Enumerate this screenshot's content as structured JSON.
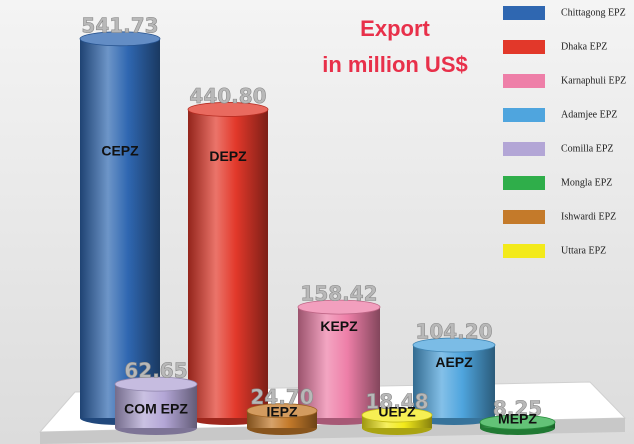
{
  "chart_data": {
    "type": "bar",
    "title": "Export",
    "subtitle": "in million US$",
    "categories": [
      "CEPZ",
      "DEPZ",
      "KEPZ",
      "AEPZ",
      "COM EPZ",
      "MEPZ",
      "IEPZ",
      "UEPZ"
    ],
    "values": [
      541.73,
      440.8,
      158.42,
      104.2,
      62.65,
      8.25,
      24.7,
      18.48
    ],
    "value_labels": [
      "541.73",
      "440.80",
      "158.42",
      "104.20",
      "62.65",
      "8.25",
      "24.70",
      "18.48"
    ],
    "legend": [
      "Chittagong EPZ",
      "Dhaka EPZ",
      "Karnaphuli EPZ",
      "Adamjee EPZ",
      "Comilla EPZ",
      "Mongla EPZ",
      "Ishwardi EPZ",
      "Uttara EPZ"
    ],
    "colors": [
      "#2f67b1",
      "#e2382a",
      "#ee7fa8",
      "#4fa5de",
      "#b3a6d6",
      "#2fae4a",
      "#c47a2a",
      "#f3ea1a"
    ]
  }
}
